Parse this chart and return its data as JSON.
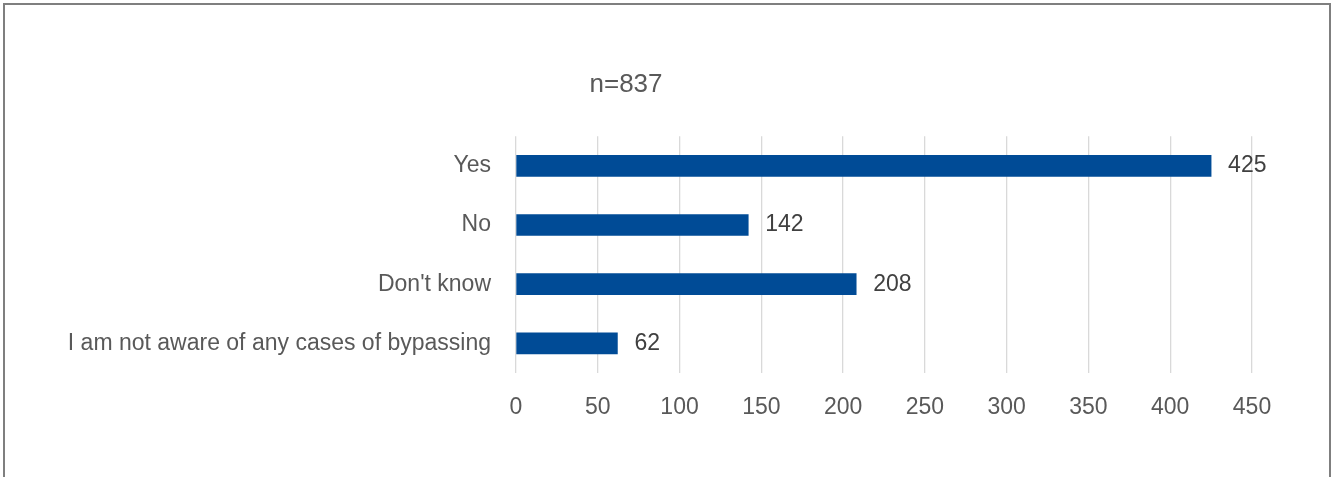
{
  "chart_data": {
    "type": "bar",
    "orientation": "horizontal",
    "title": "n=837",
    "categories": [
      "Yes",
      "No",
      "Don't know",
      "I am not aware of any cases of bypassing"
    ],
    "values": [
      425,
      142,
      208,
      62
    ],
    "color": "#004b96",
    "xlim": [
      0,
      450
    ],
    "xticks": [
      0,
      50,
      100,
      150,
      200,
      250,
      300,
      350,
      400,
      450
    ],
    "grid": "x",
    "data_labels": true,
    "legend": false
  }
}
